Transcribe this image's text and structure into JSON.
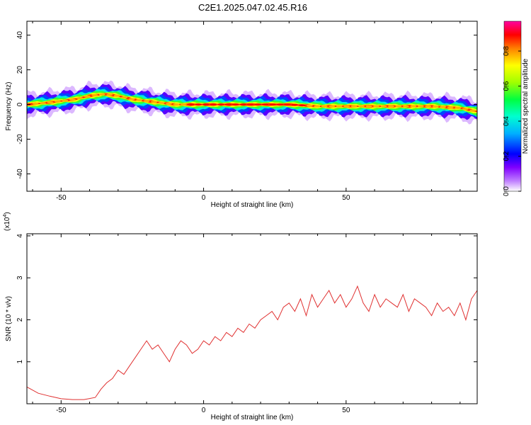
{
  "title": "C2E1.2025.047.02.45.R16",
  "chart_data": [
    {
      "type": "heatmap",
      "xlabel": "Height of straight line (km)",
      "ylabel": "Frequency (Hz)",
      "xlim": [
        -62,
        96
      ],
      "ylim": [
        -50,
        48
      ],
      "xticks": [
        -50,
        0,
        50
      ],
      "xtick_labels": [
        "-50",
        "0",
        "50"
      ],
      "yticks": [
        -40,
        -20,
        0,
        20,
        40
      ],
      "ytick_labels": [
        "-40",
        "-20",
        "0",
        "20",
        "40"
      ],
      "ridge": {
        "x": [
          -62,
          -55,
          -50,
          -45,
          -40,
          -35,
          -30,
          -25,
          -20,
          -15,
          -10,
          -5,
          0,
          10,
          20,
          30,
          40,
          50,
          60,
          70,
          80,
          90,
          96
        ],
        "y": [
          0,
          1,
          2,
          3,
          5,
          6,
          5,
          3,
          2,
          1,
          0,
          0,
          0,
          0,
          0,
          0,
          -1,
          -1,
          -1,
          -1,
          -1,
          -2,
          -4
        ]
      },
      "colorbar": {
        "label": "Normalized spectral amplitude",
        "range": [
          0,
          0.97
        ],
        "ticks": [
          0.0,
          0.2,
          0.4,
          0.6,
          0.8
        ],
        "tick_labels": [
          "0.0",
          "0.2",
          "0.4",
          "0.6",
          "0.8"
        ]
      }
    },
    {
      "type": "line",
      "xlabel": "Height of straight line (km)",
      "ylabel": "SNR (10 * v/v)",
      "multiplier_label": "(x10",
      "multiplier_exp": "4",
      "multiplier_close": ")",
      "xlim": [
        -62,
        96
      ],
      "ylim": [
        0,
        4.05
      ],
      "xticks": [
        -50,
        0,
        50
      ],
      "xtick_labels": [
        "-50",
        "0",
        "50"
      ],
      "yticks": [
        1,
        2,
        3,
        4
      ],
      "ytick_labels": [
        "1",
        "2",
        "3",
        "4"
      ],
      "color": "#e03030",
      "series": [
        {
          "x": [
            -62,
            -58,
            -54,
            -50,
            -46,
            -42,
            -38,
            -36,
            -34,
            -32,
            -30,
            -28,
            -26,
            -24,
            -22,
            -20,
            -18,
            -16,
            -14,
            -12,
            -10,
            -8,
            -6,
            -4,
            -2,
            0,
            2,
            4,
            6,
            8,
            10,
            12,
            14,
            16,
            18,
            20,
            22,
            24,
            26,
            28,
            30,
            32,
            34,
            36,
            38,
            40,
            42,
            44,
            46,
            48,
            50,
            52,
            54,
            56,
            58,
            60,
            62,
            64,
            66,
            68,
            70,
            72,
            74,
            76,
            78,
            80,
            82,
            84,
            86,
            88,
            90,
            92,
            94,
            96
          ],
          "y": [
            0.4,
            0.25,
            0.18,
            0.12,
            0.1,
            0.1,
            0.15,
            0.35,
            0.5,
            0.6,
            0.8,
            0.7,
            0.9,
            1.1,
            1.3,
            1.5,
            1.3,
            1.4,
            1.2,
            1.0,
            1.3,
            1.5,
            1.4,
            1.2,
            1.3,
            1.5,
            1.4,
            1.6,
            1.5,
            1.7,
            1.6,
            1.8,
            1.7,
            1.9,
            1.8,
            2.0,
            2.1,
            2.2,
            2.0,
            2.3,
            2.4,
            2.2,
            2.5,
            2.1,
            2.6,
            2.3,
            2.5,
            2.7,
            2.4,
            2.6,
            2.3,
            2.5,
            2.8,
            2.4,
            2.2,
            2.6,
            2.3,
            2.5,
            2.4,
            2.3,
            2.6,
            2.2,
            2.5,
            2.4,
            2.3,
            2.1,
            2.4,
            2.2,
            2.3,
            2.1,
            2.4,
            2.0,
            2.5,
            2.7
          ]
        }
      ]
    }
  ]
}
